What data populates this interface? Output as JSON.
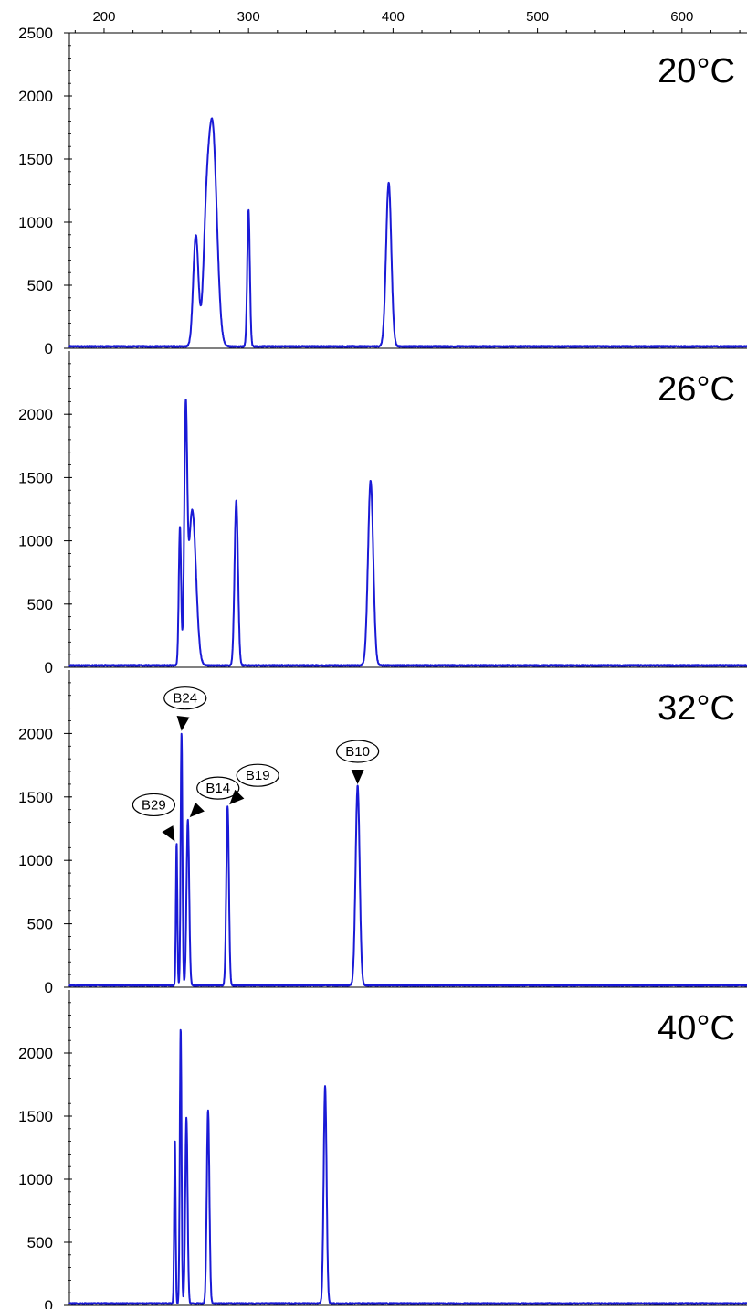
{
  "chart_data": {
    "type": "line",
    "x_axis": {
      "range": [
        176,
        645
      ],
      "tick_labels": [
        "200",
        "300",
        "400",
        "500",
        "600"
      ],
      "tick_values": [
        200,
        300,
        400,
        500,
        600
      ]
    },
    "y_axis": {
      "range": [
        0,
        2500
      ],
      "tick_labels": [
        "0",
        "500",
        "1000",
        "1500",
        "2000",
        "2500"
      ],
      "tick_values": [
        0,
        500,
        1000,
        1500,
        2000,
        2500
      ]
    },
    "series_color": "#1a1ad6",
    "panels": [
      {
        "label": "20°C",
        "y_labels": [
          "0",
          "500",
          "1000",
          "1500",
          "2000",
          "2500"
        ],
        "baseline": 15,
        "peaks": [
          {
            "x": 263.5,
            "h": 880,
            "w": 1.8
          },
          {
            "x": 275,
            "h": 1740,
            "w": 3.0
          },
          {
            "x": 270.5,
            "h": 650,
            "w": 2.0
          },
          {
            "x": 300,
            "h": 1080,
            "w": 0.9
          },
          {
            "x": 397,
            "h": 1300,
            "w": 1.8
          }
        ],
        "annotations": []
      },
      {
        "label": "26°C",
        "y_labels": [
          "0",
          "500",
          "1000",
          "1500",
          "2000"
        ],
        "baseline": 15,
        "peaks": [
          {
            "x": 252.5,
            "h": 1090,
            "w": 0.8
          },
          {
            "x": 256.5,
            "h": 1820,
            "w": 1.0
          },
          {
            "x": 261,
            "h": 1230,
            "w": 2.6
          },
          {
            "x": 291.5,
            "h": 1300,
            "w": 1.2
          },
          {
            "x": 384.5,
            "h": 1460,
            "w": 1.8
          }
        ],
        "annotations": []
      },
      {
        "label": "32°C",
        "y_labels": [
          "0",
          "500",
          "1000",
          "1500",
          "2000"
        ],
        "baseline": 15,
        "peaks": [
          {
            "x": 250.2,
            "h": 1120,
            "w": 0.5
          },
          {
            "x": 253.6,
            "h": 1990,
            "w": 0.6
          },
          {
            "x": 258,
            "h": 1310,
            "w": 0.9
          },
          {
            "x": 285.5,
            "h": 1410,
            "w": 0.9
          },
          {
            "x": 375.5,
            "h": 1570,
            "w": 1.4
          }
        ],
        "annotations": [
          {
            "text": "B29",
            "x": 250.2,
            "h": 1120
          },
          {
            "text": "B24",
            "x": 253.6,
            "h": 1990
          },
          {
            "text": "B14",
            "x": 258,
            "h": 1310
          },
          {
            "text": "B19",
            "x": 285.5,
            "h": 1410
          },
          {
            "text": "B10",
            "x": 375.5,
            "h": 1570
          }
        ]
      },
      {
        "label": "40°C",
        "y_labels": [
          "0",
          "500",
          "1000",
          "1500",
          "2000"
        ],
        "baseline": 15,
        "peaks": [
          {
            "x": 249,
            "h": 1290,
            "w": 0.5
          },
          {
            "x": 253,
            "h": 2180,
            "w": 0.6
          },
          {
            "x": 257,
            "h": 1470,
            "w": 0.8
          },
          {
            "x": 272,
            "h": 1530,
            "w": 0.9
          },
          {
            "x": 353,
            "h": 1720,
            "w": 1.0
          }
        ],
        "annotations": []
      }
    ]
  }
}
